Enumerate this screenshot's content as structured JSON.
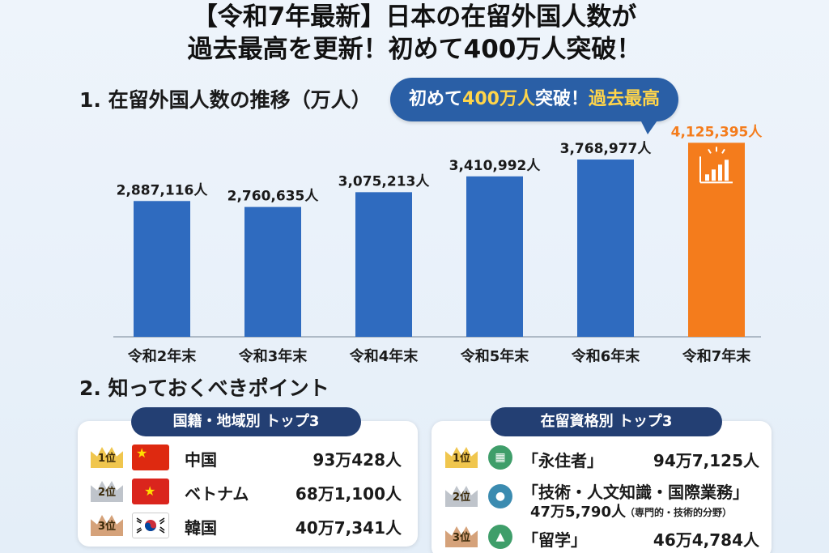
{
  "title": {
    "line1": "【令和7年最新】日本の在留外国人数が",
    "line2": "過去最高を更新！初めて400万人突破！"
  },
  "section1": {
    "heading": "1. 在留外国人数の推移（万人）"
  },
  "callout": {
    "prefix": "初めて",
    "highlight1": "400万人",
    "middle": "突破！",
    "highlight2": "過去最高"
  },
  "chart_data": {
    "type": "bar",
    "title": "在留外国人数の推移（万人）",
    "categories": [
      "令和2年末",
      "令和3年末",
      "令和4年末",
      "令和5年末",
      "令和6年末",
      "令和7年末"
    ],
    "values": [
      2887116,
      2760635,
      3075213,
      3410992,
      3768977,
      4125395
    ],
    "value_labels": [
      "2,887,116人",
      "2,760,635人",
      "3,075,213人",
      "3,410,992人",
      "3,768,977人",
      "4,125,395人"
    ],
    "highlight_index": 5,
    "colors": {
      "bar": "#2f6bbf",
      "highlight": "#f47c1c",
      "highlight_label": "#f47c1c"
    },
    "ylim": [
      0,
      4200000
    ],
    "xlabel": "",
    "ylabel": ""
  },
  "section2": {
    "heading": "2. 知っておくべきポイント"
  },
  "nationality": {
    "title": "国籍・地域別 トップ3",
    "items": [
      {
        "rank": "1位",
        "name": "中国",
        "count": "93万428人",
        "flag": "china-flag"
      },
      {
        "rank": "2位",
        "name": "ベトナム",
        "count": "68万1,100人",
        "flag": "vietnam-flag"
      },
      {
        "rank": "3位",
        "name": "韓国",
        "count": "40万7,341人",
        "flag": "korea-flag"
      }
    ]
  },
  "status": {
    "title": "在留資格別 トップ3",
    "items": [
      {
        "rank": "1位",
        "name": "「永住者」",
        "count": "94万7,125人",
        "icon": "building-icon"
      },
      {
        "rank": "2位",
        "name": "「技術・人文知識・国際業務」",
        "count": "47万5,790人",
        "note": "（専門的・技術的分野）",
        "icon": "person-icon"
      },
      {
        "rank": "3位",
        "name": "「留学」",
        "count": "46万4,784人",
        "icon": "graduation-cap-icon"
      }
    ]
  }
}
